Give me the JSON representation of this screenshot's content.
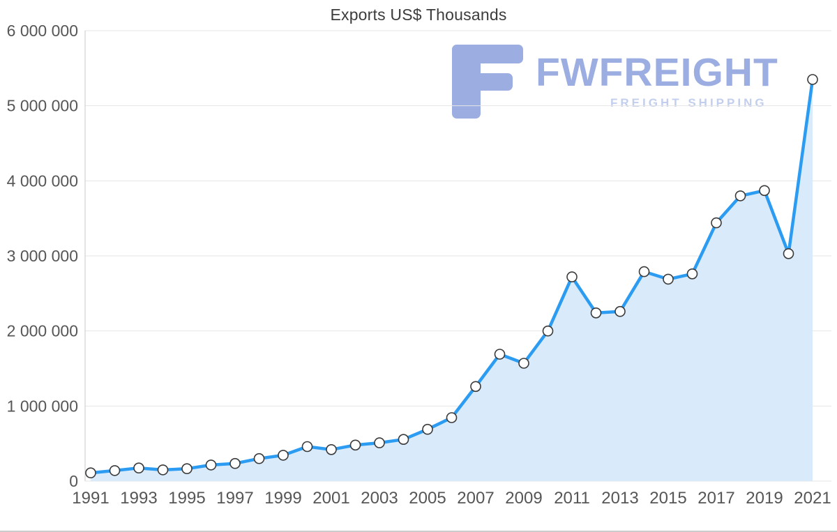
{
  "watermark": {
    "brand": "FWFREIGHT",
    "tagline": "FREIGHT SHIPPING",
    "colors": {
      "logo": "#92a6de",
      "brand_text": "#92a6de",
      "tagline_text": "#bcc9ec"
    }
  },
  "chart_data": {
    "type": "area",
    "title": "Exports US$ Thousands",
    "xlabel": "",
    "ylabel": "",
    "grid": true,
    "legend": "none",
    "x": [
      1991,
      1992,
      1993,
      1994,
      1995,
      1996,
      1997,
      1998,
      1999,
      2000,
      2001,
      2002,
      2003,
      2004,
      2005,
      2006,
      2007,
      2008,
      2009,
      2010,
      2011,
      2012,
      2013,
      2014,
      2015,
      2016,
      2017,
      2018,
      2019,
      2020,
      2021
    ],
    "values": [
      110000,
      140000,
      175000,
      150000,
      165000,
      215000,
      235000,
      300000,
      345000,
      460000,
      420000,
      480000,
      510000,
      555000,
      690000,
      845000,
      1260000,
      1690000,
      1570000,
      2000000,
      2720000,
      2240000,
      2260000,
      2790000,
      2690000,
      2760000,
      3440000,
      3800000,
      3870000,
      3030000,
      5350000
    ],
    "ylim": [
      0,
      6000000
    ],
    "y_ticks": [
      {
        "value": 0,
        "label": "0"
      },
      {
        "value": 1000000,
        "label": "1 000 000"
      },
      {
        "value": 2000000,
        "label": "2 000 000"
      },
      {
        "value": 3000000,
        "label": "3 000 000"
      },
      {
        "value": 4000000,
        "label": "4 000 000"
      },
      {
        "value": 5000000,
        "label": "5 000 000"
      },
      {
        "value": 6000000,
        "label": "6 000 000"
      }
    ],
    "x_tick_years": [
      1991,
      1993,
      1995,
      1997,
      1999,
      2001,
      2003,
      2005,
      2007,
      2009,
      2011,
      2013,
      2015,
      2017,
      2019,
      2021
    ],
    "colors": {
      "line": "#2b9cf2",
      "fill": "#d9eafa",
      "grid": "#e5e5e5",
      "axis": "#c9c9c9",
      "marker_fill": "#ffffff",
      "marker_stroke": "#3a3a3a",
      "label": "#565656",
      "title": "#3c3c3c"
    }
  }
}
